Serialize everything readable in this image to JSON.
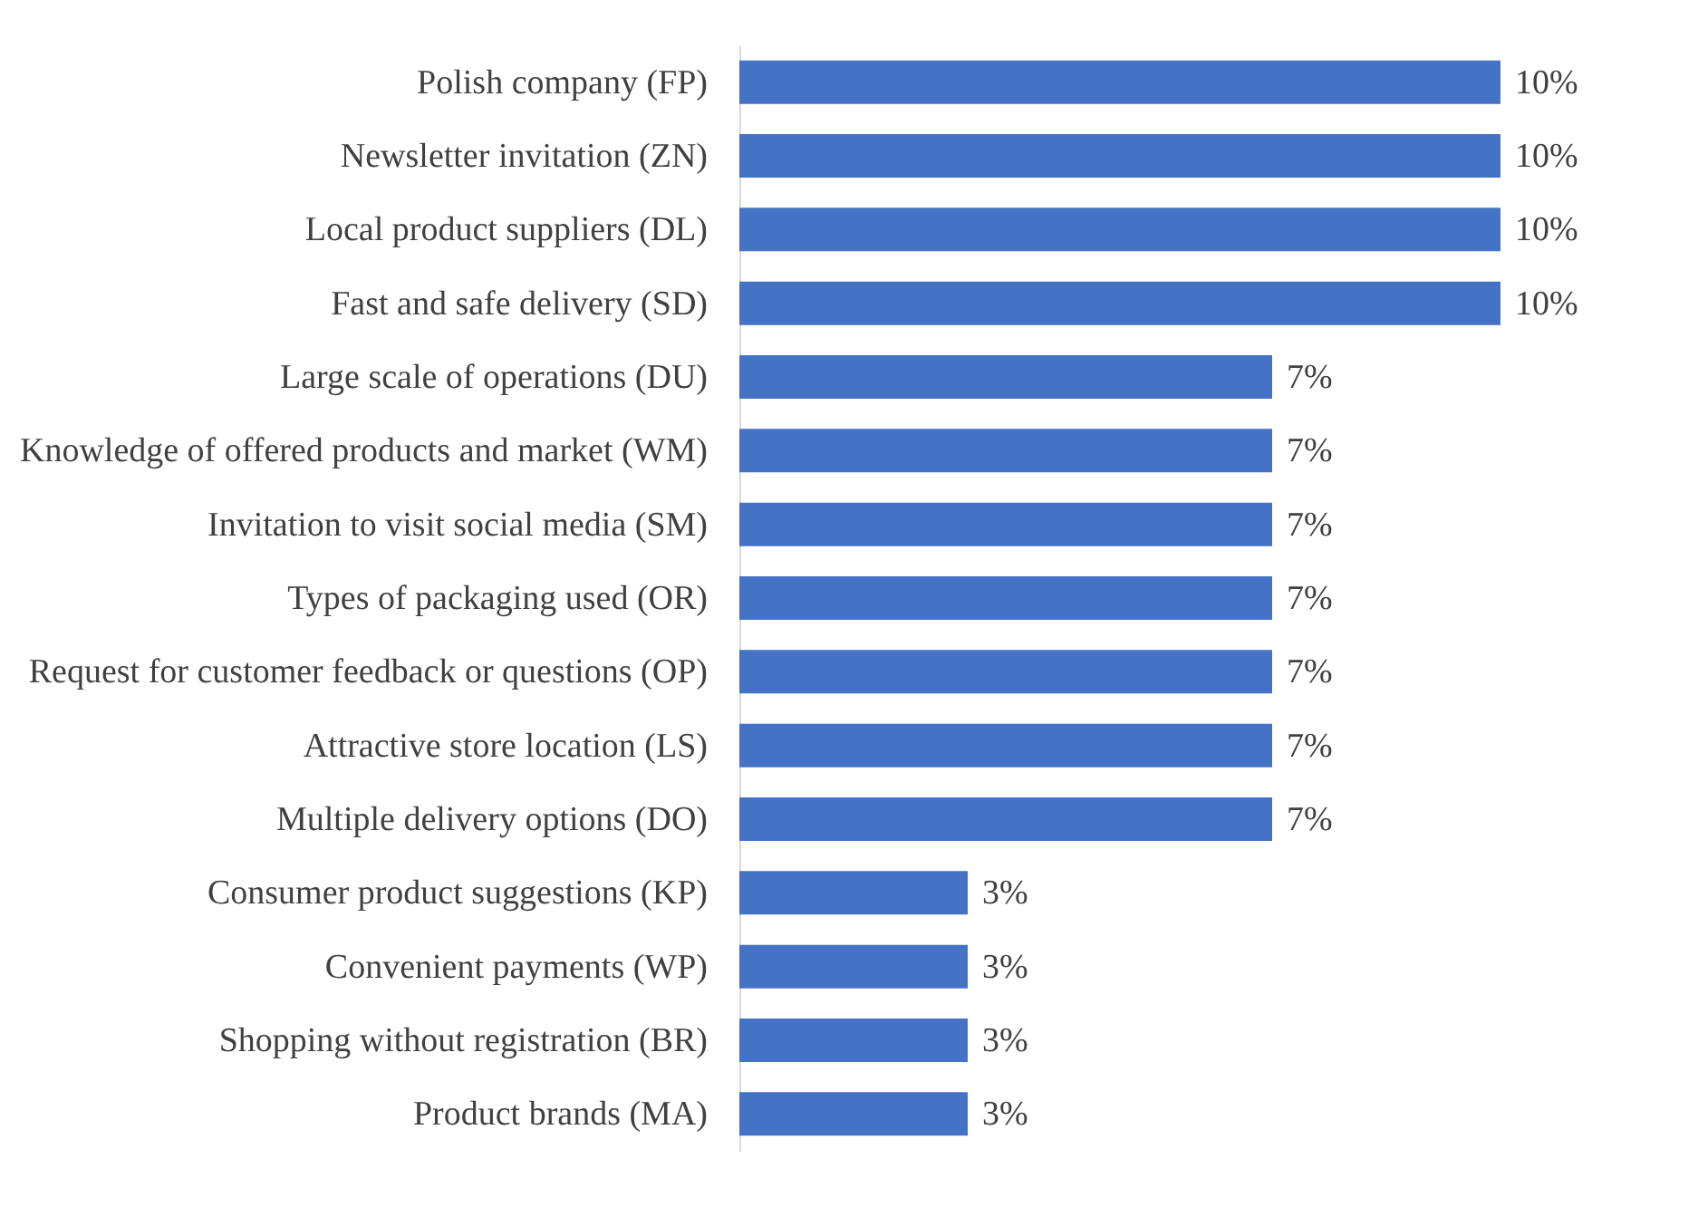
{
  "chart_data": {
    "type": "bar",
    "orientation": "horizontal",
    "categories": [
      "Polish company (FP)",
      "Newsletter invitation (ZN)",
      "Local product suppliers (DL)",
      "Fast and safe delivery (SD)",
      "Large scale of operations (DU)",
      "Knowledge of offered products and market (WM)",
      "Invitation to visit social media (SM)",
      "Types of packaging used (OR)",
      "Request for customer feedback or questions (OP)",
      "Attractive store location (LS)",
      "Multiple delivery options (DO)",
      "Consumer product suggestions (KP)",
      "Convenient payments (WP)",
      "Shopping without registration (BR)",
      "Product brands (MA)"
    ],
    "values": [
      10,
      10,
      10,
      10,
      7,
      7,
      7,
      7,
      7,
      7,
      7,
      3,
      3,
      3,
      3
    ],
    "value_labels": [
      "10%",
      "10%",
      "10%",
      "10%",
      "7%",
      "7%",
      "7%",
      "7%",
      "7%",
      "7%",
      "7%",
      "3%",
      "3%",
      "3%",
      "3%"
    ],
    "color": "#4472c4",
    "grid": false
  }
}
